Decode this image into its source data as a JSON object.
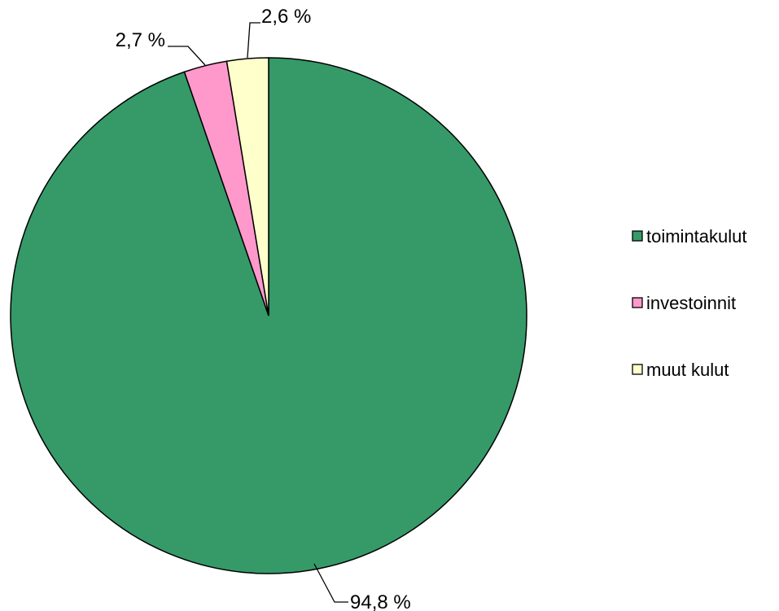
{
  "chart_data": {
    "type": "pie",
    "categories": [
      "toimintakulut",
      "investoinnit",
      "muut kulut"
    ],
    "values": [
      94.8,
      2.7,
      2.6
    ],
    "data_labels": [
      "94,8 %",
      "2,7 %",
      "2,6 %"
    ],
    "colors": [
      "#359a68",
      "#ff99cc",
      "#ffffcc"
    ],
    "legend": {
      "placement": "right",
      "items": [
        "toimintakulut",
        "investoinnit",
        "muut kulut"
      ]
    },
    "start": "12 o'clock",
    "direction": "clockwise"
  }
}
